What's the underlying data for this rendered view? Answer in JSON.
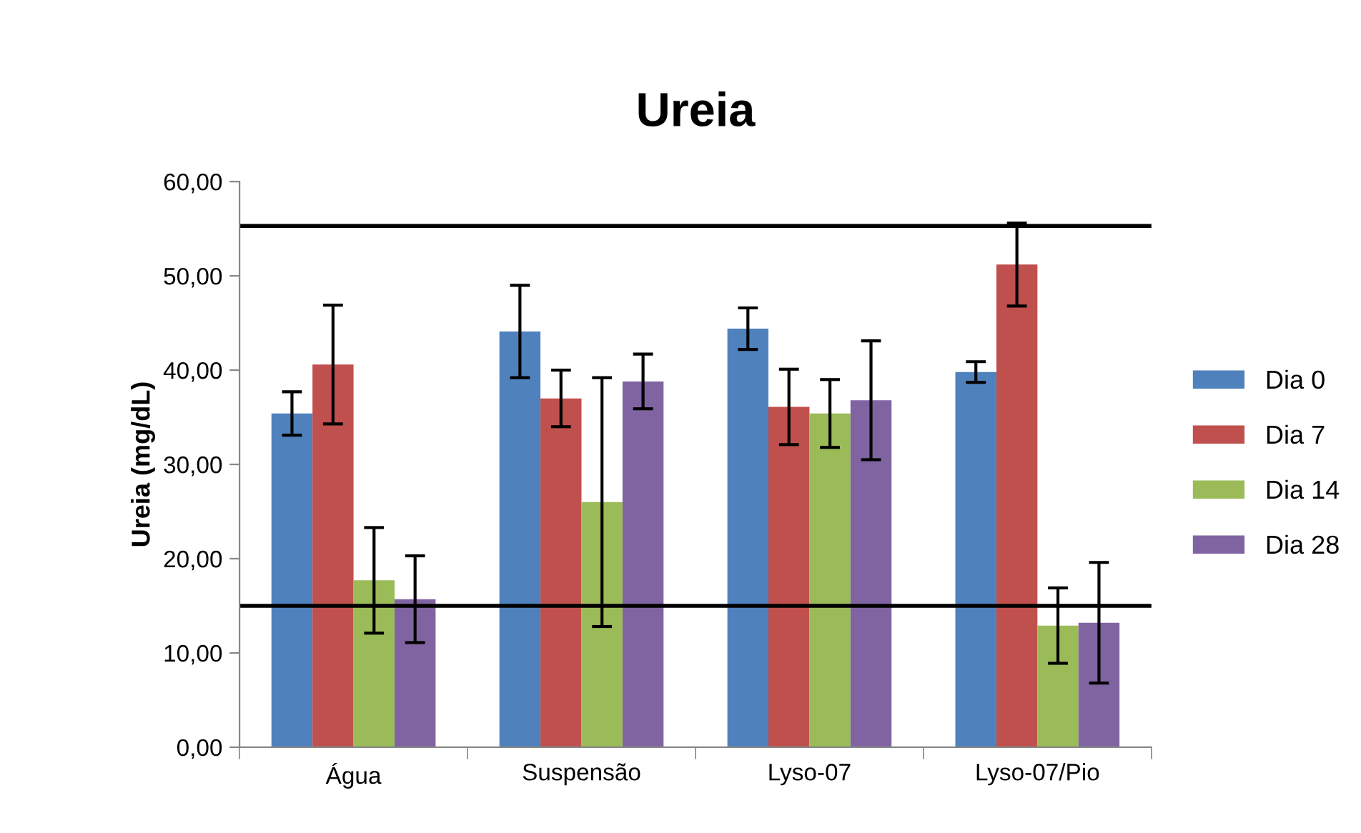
{
  "chart_data": {
    "type": "bar",
    "title": "Ureia",
    "ylabel": "Ureia (mg/dL)",
    "categories": [
      "Água",
      "Suspensão",
      "Lyso-07",
      "Lyso-07/Pio"
    ],
    "series": [
      {
        "name": "Dia 0",
        "color": "#4f81bd",
        "values": [
          35.4,
          44.1,
          44.4,
          39.8
        ],
        "errors": [
          2.3,
          4.9,
          2.2,
          1.1
        ]
      },
      {
        "name": "Dia 7",
        "color": "#c0504d",
        "values": [
          40.6,
          37.0,
          36.1,
          51.2
        ],
        "errors": [
          6.3,
          3.0,
          4.0,
          4.4
        ]
      },
      {
        "name": "Dia 14",
        "color": "#9bbb59",
        "values": [
          17.7,
          26.0,
          35.4,
          12.9
        ],
        "errors": [
          5.6,
          13.2,
          3.6,
          4.0
        ]
      },
      {
        "name": "Dia 28",
        "color": "#8064a2",
        "values": [
          15.7,
          38.8,
          36.8,
          13.2
        ],
        "errors": [
          4.6,
          2.9,
          6.3,
          6.4
        ]
      }
    ],
    "ylim": [
      0,
      60
    ],
    "yticks": [
      {
        "value": 0,
        "label": "0,00"
      },
      {
        "value": 10,
        "label": "10,00"
      },
      {
        "value": 20,
        "label": "20,00"
      },
      {
        "value": 30,
        "label": "30,00"
      },
      {
        "value": 40,
        "label": "40,00"
      },
      {
        "value": 50,
        "label": "50,00"
      },
      {
        "value": 60,
        "label": "60,00"
      }
    ],
    "ref_lines": [
      {
        "axis": "y",
        "value": 55.3,
        "color": "#000000"
      },
      {
        "axis": "y",
        "value": 15.0,
        "color": "#000000"
      }
    ],
    "legend": "right",
    "grid": false
  }
}
